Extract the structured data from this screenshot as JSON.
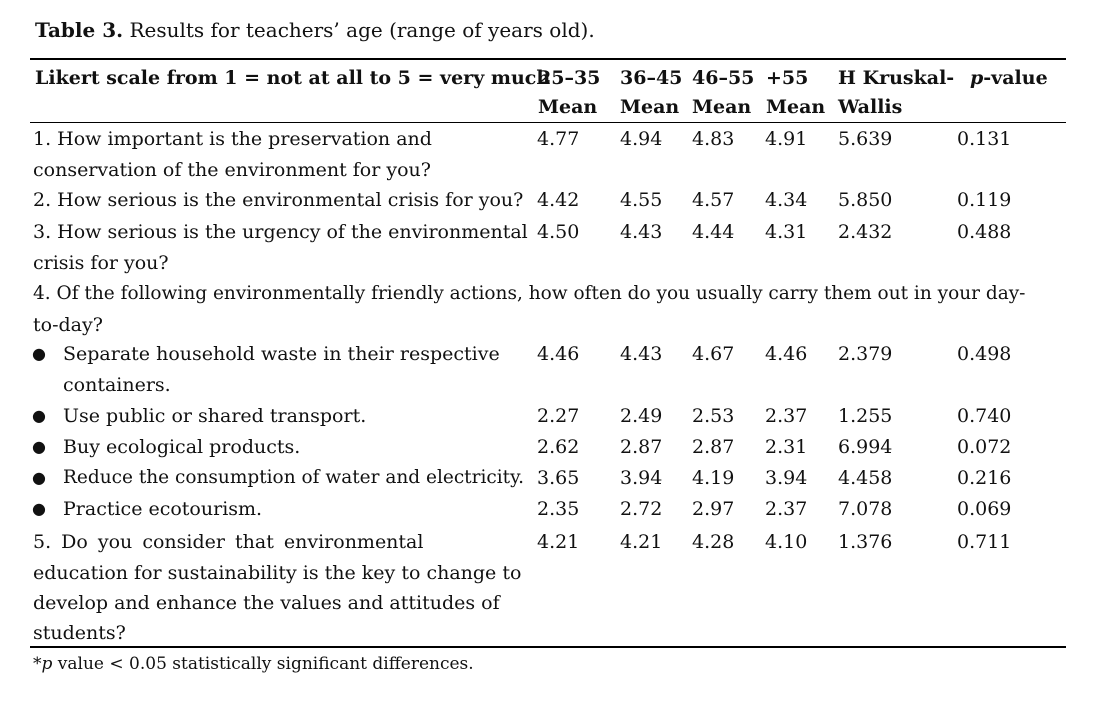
{
  "table": {
    "caption_lead": "Table 3.",
    "caption_text": "Results for teachers’ age (range of years old).",
    "header": {
      "row1": {
        "likert": "Likert scale from 1 = not at all to 5 = very much",
        "c1": "25–35",
        "c2": "36–45",
        "c3": "46–55",
        "c4": "+55",
        "h": "H Kruskal-",
        "p_italic": "p",
        "p_rest": "-value"
      },
      "row2": {
        "c1": "Mean",
        "c2": "Mean",
        "c3": "Mean",
        "c4": "Mean",
        "h": "Wallis"
      }
    },
    "rows": {
      "q1": {
        "line1": "1. How important is the preservation and",
        "line2": "conservation of the environment for you?",
        "v1": "4.77",
        "v2": "4.94",
        "v3": "4.83",
        "v4": "4.91",
        "h": "5.639",
        "p": "0.131"
      },
      "q2": {
        "line1": "2. How serious is the environmental crisis for you?",
        "v1": "4.42",
        "v2": "4.55",
        "v3": "4.57",
        "v4": "4.34",
        "h": "5.850",
        "p": "0.119"
      },
      "q3": {
        "line1": "3. How serious is the urgency of the environmental",
        "line2": "crisis for you?",
        "v1": "4.50",
        "v2": "4.43",
        "v3": "4.44",
        "v4": "4.31",
        "h": "2.432",
        "p": "0.488"
      },
      "q4": {
        "line1": "4. Of the following environmentally friendly actions, how often do you usually carry them out in your day-",
        "line2": "to-day?"
      },
      "b1": {
        "line1": "Separate household waste in their respective",
        "line2": "containers.",
        "v1": "4.46",
        "v2": "4.43",
        "v3": "4.67",
        "v4": "4.46",
        "h": "2.379",
        "p": "0.498"
      },
      "b2": {
        "line1": "Use public or shared transport.",
        "v1": "2.27",
        "v2": "2.49",
        "v3": "2.53",
        "v4": "2.37",
        "h": "1.255",
        "p": "0.740"
      },
      "b3": {
        "line1": "Buy ecological products.",
        "v1": "2.62",
        "v2": "2.87",
        "v3": "2.87",
        "v4": "2.31",
        "h": "6.994",
        "p": "0.072"
      },
      "b4": {
        "line1": "Reduce the consumption of water and electricity.",
        "v1": "3.65",
        "v2": "3.94",
        "v3": "4.19",
        "v4": "3.94",
        "h": "4.458",
        "p": "0.216"
      },
      "b5": {
        "line1": "Practice ecotourism.",
        "v1": "2.35",
        "v2": "2.72",
        "v3": "2.97",
        "v4": "2.37",
        "h": "7.078",
        "p": "0.069"
      },
      "q5": {
        "line1": "5. Do you consider that environmental",
        "line2": "education for sustainability is the key to change to",
        "line3": "develop and enhance the values and attitudes of",
        "line4": "students?",
        "v1": "4.21",
        "v2": "4.21",
        "v3": "4.28",
        "v4": "4.10",
        "h": "1.376",
        "p": "0.711"
      }
    },
    "bullet_glyph": "●",
    "footnote": {
      "star": "*",
      "p_italic": "p",
      "text": " value < 0.05 statistically significant differences."
    }
  }
}
